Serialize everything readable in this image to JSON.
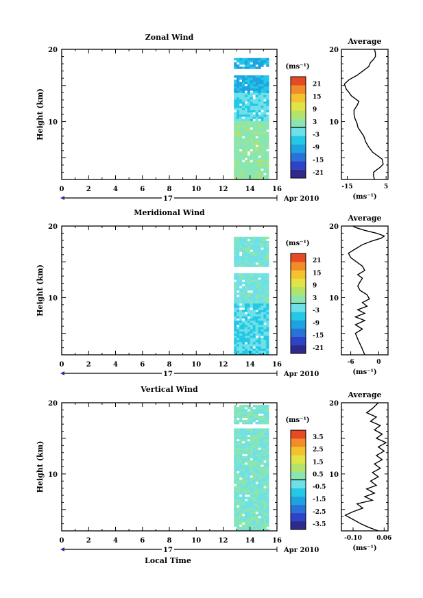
{
  "chart_data": [
    {
      "type": "heatmap",
      "title": "Zonal Wind",
      "ylabel": "Height (km)",
      "xlim": [
        0,
        16
      ],
      "ylim": [
        2,
        20
      ],
      "x_ticks": [
        "0",
        "2",
        "4",
        "6",
        "8",
        "10",
        "12",
        "14",
        "16"
      ],
      "y_ticks": [
        "10",
        "20"
      ],
      "date_label": "17",
      "date_suffix": "Apr 2010",
      "data_extent_x": [
        12.8,
        15.2
      ],
      "colorbar": {
        "unit": "(ms⁻¹)",
        "ticks": [
          "21",
          "15",
          "9",
          "3",
          "-3",
          "-9",
          "-15",
          "-21"
        ],
        "range": [
          -24,
          24
        ]
      },
      "profile": {
        "title": "Average",
        "xlabel": "(ms⁻¹)",
        "xlim": [
          -18,
          6
        ],
        "x_ticks": [
          "-15",
          "5"
        ],
        "y_ticks": [
          "10",
          "20"
        ],
        "points": [
          [
            -1,
            2
          ],
          [
            -1.5,
            2.5
          ],
          [
            -1.4,
            3
          ],
          [
            0.5,
            3.4
          ],
          [
            2,
            3.7
          ],
          [
            3.5,
            4.1
          ],
          [
            3,
            4.8
          ],
          [
            0.5,
            5.3
          ],
          [
            -2,
            5.8
          ],
          [
            -4,
            6.5
          ],
          [
            -5.5,
            7.2
          ],
          [
            -6.5,
            8
          ],
          [
            -8,
            8.6
          ],
          [
            -9.5,
            9.2
          ],
          [
            -10,
            9.8
          ],
          [
            -11,
            10.4
          ],
          [
            -11.5,
            11
          ],
          [
            -11.5,
            11.6
          ],
          [
            -10,
            12.2
          ],
          [
            -9,
            12.8
          ],
          [
            -11,
            13.2
          ],
          [
            -13,
            13.6
          ],
          [
            -14,
            14
          ],
          [
            -15.5,
            14.5
          ],
          [
            -16.5,
            15.2
          ],
          [
            -14,
            15.8
          ],
          [
            -10,
            16.4
          ],
          [
            -7,
            17
          ],
          [
            -4,
            17.6
          ],
          [
            -3,
            18.2
          ],
          [
            -1.5,
            18.6
          ],
          [
            -0.5,
            19
          ],
          [
            -0.5,
            19.5
          ],
          [
            -1,
            20
          ]
        ]
      }
    },
    {
      "type": "heatmap",
      "title": "Meridional Wind",
      "ylabel": "Height (km)",
      "xlim": [
        0,
        16
      ],
      "ylim": [
        2,
        20
      ],
      "x_ticks": [
        "0",
        "2",
        "4",
        "6",
        "8",
        "10",
        "12",
        "14",
        "16"
      ],
      "y_ticks": [
        "10",
        "20"
      ],
      "date_label": "17",
      "date_suffix": "Apr 2010",
      "data_extent_x": [
        12.8,
        15.2
      ],
      "colorbar": {
        "unit": "(ms⁻¹)",
        "ticks": [
          "21",
          "15",
          "9",
          "3",
          "-3",
          "-9",
          "-15",
          "-21"
        ],
        "range": [
          -24,
          24
        ]
      },
      "profile": {
        "title": "Average",
        "xlabel": "(ms⁻¹)",
        "xlim": [
          -8,
          2
        ],
        "x_ticks": [
          "-6",
          "0"
        ],
        "y_ticks": [
          "10",
          "20"
        ],
        "points": [
          [
            -3,
            2
          ],
          [
            -3.5,
            2.8
          ],
          [
            -4,
            3.5
          ],
          [
            -4.5,
            4.2
          ],
          [
            -5,
            5
          ],
          [
            -3.5,
            5.6
          ],
          [
            -5,
            6.2
          ],
          [
            -3,
            6.8
          ],
          [
            -5,
            7.3
          ],
          [
            -3,
            7.8
          ],
          [
            -4.5,
            8.3
          ],
          [
            -2.5,
            8.8
          ],
          [
            -3.5,
            9.3
          ],
          [
            -2,
            9.8
          ],
          [
            -2.5,
            10.4
          ],
          [
            -4,
            11
          ],
          [
            -4.5,
            11.6
          ],
          [
            -4,
            12.2
          ],
          [
            -3.5,
            12.7
          ],
          [
            -4.5,
            13.2
          ],
          [
            -3,
            13.8
          ],
          [
            -3.5,
            14.4
          ],
          [
            -4.8,
            15
          ],
          [
            -6,
            15.6
          ],
          [
            -6.5,
            16.2
          ],
          [
            -5,
            16.8
          ],
          [
            -3.5,
            17.4
          ],
          [
            -1.5,
            17.9
          ],
          [
            0.5,
            18.3
          ],
          [
            1.2,
            18.6
          ],
          [
            -0.5,
            19
          ],
          [
            -3,
            19.4
          ],
          [
            -5,
            19.8
          ],
          [
            -5.5,
            20
          ]
        ]
      }
    },
    {
      "type": "heatmap",
      "title": "Vertical Wind",
      "ylabel": "Height (km)",
      "xlabel": "Local Time",
      "xlim": [
        0,
        16
      ],
      "ylim": [
        2,
        20
      ],
      "x_ticks": [
        "0",
        "2",
        "4",
        "6",
        "8",
        "10",
        "12",
        "14",
        "16"
      ],
      "y_ticks": [
        "10",
        "20"
      ],
      "date_label": "17",
      "date_suffix": "Apr 2010",
      "data_extent_x": [
        12.8,
        15.2
      ],
      "colorbar": {
        "unit": "(ms⁻¹)",
        "ticks": [
          "3.5",
          "2.5",
          "1.5",
          "0.5",
          "-0.5",
          "-1.5",
          "-2.5",
          "-3.5"
        ],
        "range": [
          -4,
          4
        ]
      },
      "profile": {
        "title": "Average",
        "xlabel": "(ms⁻¹)",
        "xlim": [
          -0.16,
          0.08
        ],
        "x_ticks": [
          "-0.10",
          "0.06"
        ],
        "y_ticks": [
          "10",
          "20"
        ],
        "points": [
          [
            0.03,
            2
          ],
          [
            -0.02,
            2.5
          ],
          [
            -0.06,
            3
          ],
          [
            -0.1,
            3.6
          ],
          [
            -0.14,
            4.2
          ],
          [
            -0.1,
            4.7
          ],
          [
            -0.05,
            5.2
          ],
          [
            -0.08,
            5.8
          ],
          [
            0.0,
            6.3
          ],
          [
            -0.04,
            6.8
          ],
          [
            0.01,
            7.3
          ],
          [
            -0.03,
            7.9
          ],
          [
            0.02,
            8.4
          ],
          [
            -0.01,
            9
          ],
          [
            0.03,
            9.6
          ],
          [
            0.0,
            10.2
          ],
          [
            0.04,
            10.8
          ],
          [
            0.01,
            11.4
          ],
          [
            0.05,
            12
          ],
          [
            0.02,
            12.6
          ],
          [
            0.06,
            13.2
          ],
          [
            0.03,
            13.8
          ],
          [
            0.07,
            14.4
          ],
          [
            0.02,
            15
          ],
          [
            0.05,
            15.6
          ],
          [
            0.01,
            16.2
          ],
          [
            0.04,
            16.8
          ],
          [
            -0.01,
            17.4
          ],
          [
            0.02,
            18
          ],
          [
            -0.03,
            18.6
          ],
          [
            0.0,
            19.2
          ],
          [
            0.03,
            20
          ]
        ]
      }
    }
  ]
}
